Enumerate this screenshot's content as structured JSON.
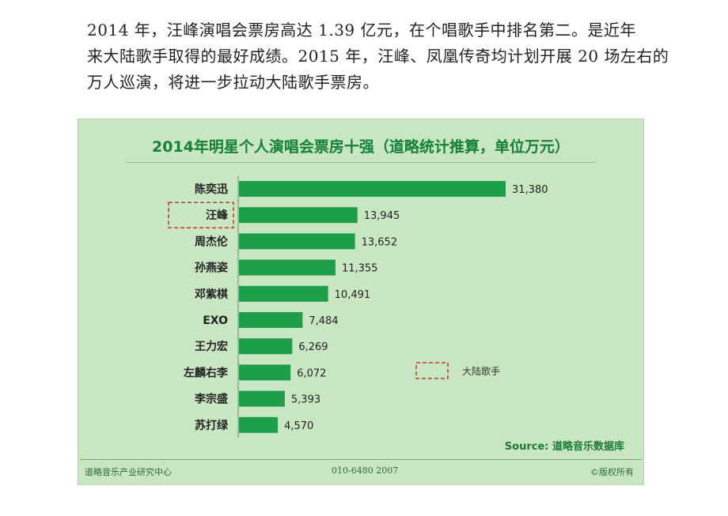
{
  "article": {
    "lines": [
      "2014 年，汪峰演唱会票房高达 1.39 亿元，在个唱歌手中排名第二。是近年",
      "来大陆歌手取得的最好成绩。2015 年，汪峰、凤凰传奇均计划开展 20 场左右的",
      "万人巡演，将进一步拉动大陆歌手票房。"
    ]
  },
  "chart_data": {
    "type": "bar",
    "orientation": "horizontal",
    "title": "2014年明星个人演唱会票房十强（道略统计推算，单位万元）",
    "categories": [
      "陈奕迅",
      "汪峰",
      "周杰伦",
      "孙燕姿",
      "邓紫棋",
      "EXO",
      "王力宏",
      "左麟右李",
      "李宗盛",
      "苏打绿"
    ],
    "values": [
      31380,
      13945,
      13652,
      11355,
      10491,
      7484,
      6269,
      6072,
      5393,
      4570
    ],
    "value_labels": [
      "31,380",
      "13,945",
      "13,652",
      "11,355",
      "10,491",
      "7,484",
      "6,269",
      "6,072",
      "5,393",
      "4,570"
    ],
    "highlighted_categories": [
      "汪峰"
    ],
    "legend": {
      "label": "大陆歌手",
      "marker": "dashed-red-box",
      "placement": "right-middle"
    },
    "bar_color": "#1f9e4a",
    "highlight_color": "#c0392b",
    "source": "Source: 道略音乐数据库"
  },
  "footer": {
    "left": "道略音乐产业研究中心",
    "center": "010-6480 2007",
    "right": "©版权所有"
  }
}
